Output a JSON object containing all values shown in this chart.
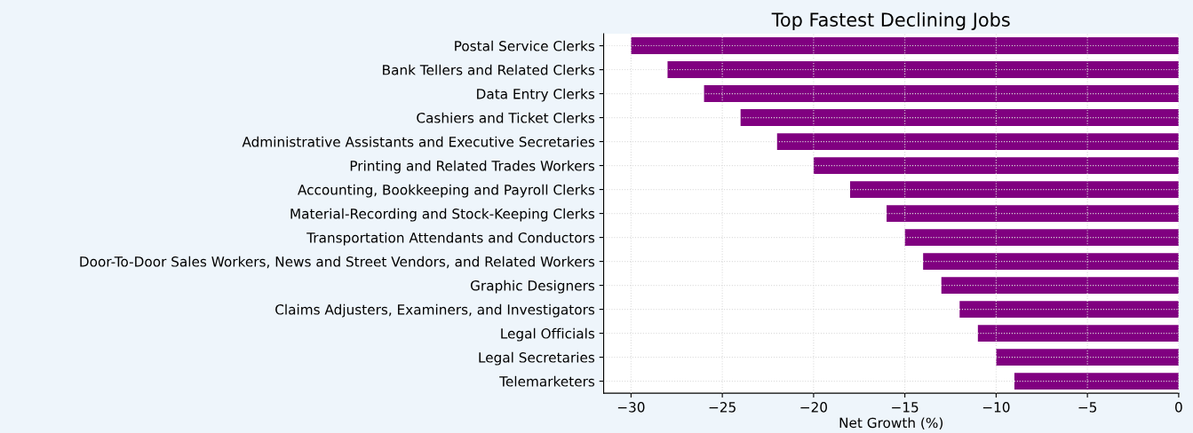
{
  "chart_data": {
    "type": "bar",
    "orientation": "horizontal",
    "title": "Top Fastest Declining Jobs",
    "xlabel": "Net Growth (%)",
    "categories": [
      "Postal Service Clerks",
      "Bank Tellers and Related Clerks",
      "Data Entry Clerks",
      "Cashiers and Ticket Clerks",
      "Administrative Assistants and Executive Secretaries",
      "Printing and Related Trades Workers",
      "Accounting, Bookkeeping and Payroll Clerks",
      "Material-Recording and Stock-Keeping Clerks",
      "Transportation Attendants and Conductors",
      "Door-To-Door Sales Workers, News and Street Vendors, and Related Workers",
      "Graphic Designers",
      "Claims Adjusters, Examiners, and Investigators",
      "Legal Officials",
      "Legal Secretaries",
      "Telemarketers"
    ],
    "values": [
      -30,
      -28,
      -26,
      -24,
      -22,
      -20,
      -18,
      -16,
      -15,
      -14,
      -13,
      -12,
      -11,
      -10,
      -9
    ],
    "color": "#800080",
    "xlim": [
      -31.5,
      0
    ],
    "xticks": [
      {
        "value": -30,
        "label": "−30"
      },
      {
        "value": -25,
        "label": "−25"
      },
      {
        "value": -20,
        "label": "−20"
      },
      {
        "value": -15,
        "label": "−15"
      },
      {
        "value": -10,
        "label": "−10"
      },
      {
        "value": -5,
        "label": "−5"
      },
      0
    ],
    "grid": true,
    "line_style": "dotted"
  }
}
